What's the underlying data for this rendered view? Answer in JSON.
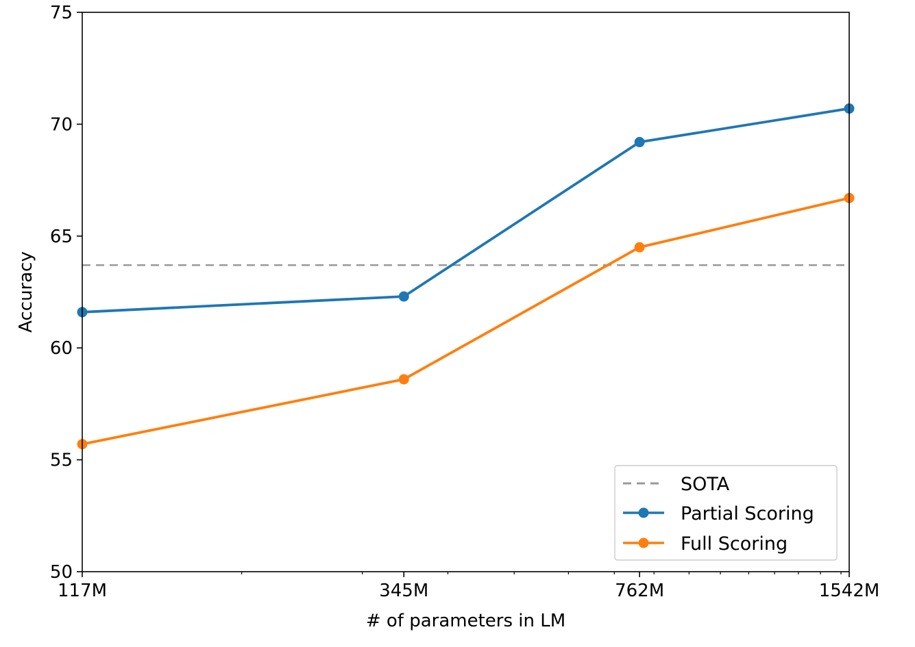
{
  "chart_data": {
    "type": "line",
    "title": "",
    "xlabel": "# of parameters in LM",
    "ylabel": "Accuracy",
    "x": [
      117,
      345,
      762,
      1542
    ],
    "x_scale": "log",
    "xticks": [
      {
        "value": 117,
        "label": "117M"
      },
      {
        "value": 345,
        "label": "345M"
      },
      {
        "value": 762,
        "label": "762M"
      },
      {
        "value": 1542,
        "label": "1542M"
      }
    ],
    "ylim": [
      50,
      75
    ],
    "yticks": [
      {
        "value": 50,
        "label": "50"
      },
      {
        "value": 55,
        "label": "55"
      },
      {
        "value": 60,
        "label": "60"
      },
      {
        "value": 65,
        "label": "65"
      },
      {
        "value": 70,
        "label": "70"
      },
      {
        "value": 75,
        "label": "75"
      }
    ],
    "grid": false,
    "legend_position": "bottom-right",
    "reference_line": {
      "name": "SOTA",
      "value": 63.7,
      "color": "#999999",
      "style": "dashed"
    },
    "series": [
      {
        "name": "Partial Scoring",
        "color": "#1f77b4",
        "values": [
          61.6,
          62.3,
          69.2,
          70.7
        ]
      },
      {
        "name": "Full Scoring",
        "color": "#ff7f0e",
        "values": [
          55.7,
          58.6,
          64.5,
          66.7
        ]
      }
    ]
  }
}
